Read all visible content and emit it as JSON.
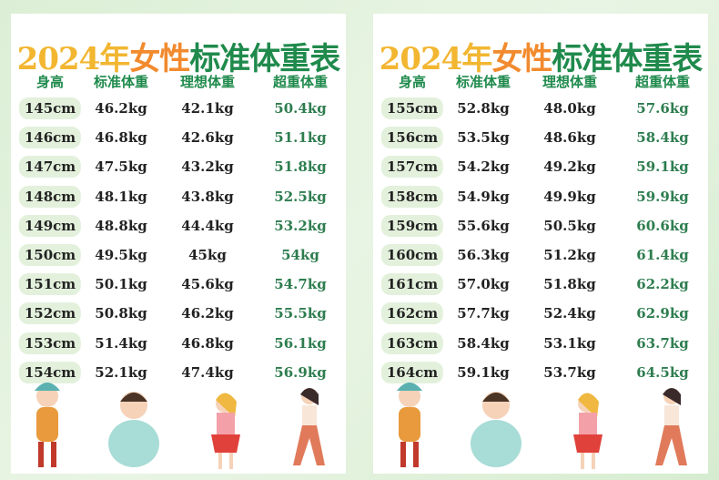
{
  "panels": [
    {
      "title": [
        "2024年",
        "女性",
        "标准体重表"
      ],
      "headers": [
        "身高",
        "标准体重",
        "理想体重",
        "超重体重"
      ],
      "rows": [
        [
          "145cm",
          "46.2kg",
          "42.1kg",
          "50.4kg"
        ],
        [
          "146cm",
          "46.8kg",
          "42.6kg",
          "51.1kg"
        ],
        [
          "147cm",
          "47.5kg",
          "43.2kg",
          "51.8kg"
        ],
        [
          "148cm",
          "48.1kg",
          "43.8kg",
          "52.5kg"
        ],
        [
          "149cm",
          "48.8kg",
          "44.4kg",
          "53.2kg"
        ],
        [
          "150cm",
          "49.5kg",
          "45kg",
          "54kg"
        ],
        [
          "151cm",
          "50.1kg",
          "45.6kg",
          "54.7kg"
        ],
        [
          "152cm",
          "50.8kg",
          "46.2kg",
          "55.5kg"
        ],
        [
          "153cm",
          "51.4kg",
          "46.8kg",
          "56.1kg"
        ],
        [
          "154cm",
          "52.1kg",
          "47.4kg",
          "56.9kg"
        ]
      ]
    },
    {
      "title": [
        "2024年",
        "女性",
        "标准体重表"
      ],
      "headers": [
        "身高",
        "标准体重",
        "理想体重",
        "超重体重"
      ],
      "rows": [
        [
          "155cm",
          "52.8kg",
          "48.0kg",
          "57.6kg"
        ],
        [
          "156cm",
          "53.5kg",
          "48.6kg",
          "58.4kg"
        ],
        [
          "157cm",
          "54.2kg",
          "49.2kg",
          "59.1kg"
        ],
        [
          "158cm",
          "54.9kg",
          "49.9kg",
          "59.9kg"
        ],
        [
          "159cm",
          "55.6kg",
          "50.5kg",
          "60.6kg"
        ],
        [
          "160cm",
          "56.3kg",
          "51.2kg",
          "61.4kg"
        ],
        [
          "161cm",
          "57.0kg",
          "51.8kg",
          "62.2kg"
        ],
        [
          "162cm",
          "57.7kg",
          "52.4kg",
          "62.9kg"
        ],
        [
          "163cm",
          "58.4kg",
          "53.1kg",
          "63.7kg"
        ],
        [
          "164cm",
          "59.1kg",
          "53.7kg",
          "64.5kg"
        ]
      ]
    }
  ]
}
